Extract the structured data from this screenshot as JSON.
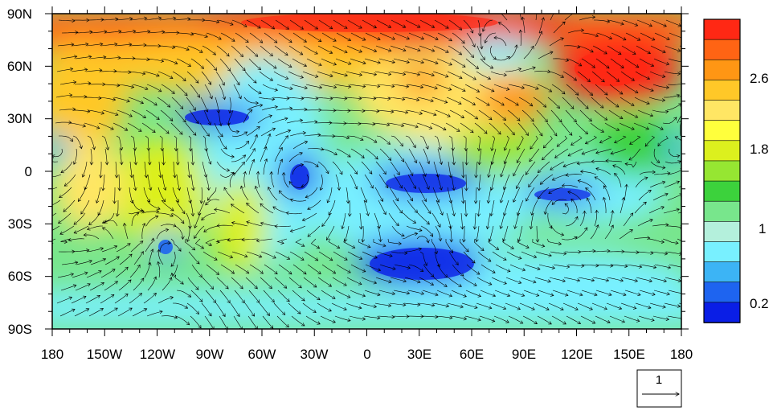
{
  "map": {
    "lat_labels": [
      "90N",
      "60N",
      "30N",
      "0",
      "30S",
      "60S",
      "90S"
    ],
    "lon_labels": [
      "180",
      "150W",
      "120W",
      "90W",
      "60W",
      "30W",
      "0",
      "30E",
      "60E",
      "90E",
      "120E",
      "150E",
      "180"
    ],
    "lat_range": [
      -90,
      90
    ],
    "lon_range": [
      -180,
      180
    ]
  },
  "colorbar": {
    "tick_labels": [
      "2.6",
      "1.8",
      "1",
      "0.2"
    ],
    "tick_values": [
      2.6,
      1.8,
      1.0,
      0.2
    ],
    "levels": [
      0.2,
      0.4,
      0.6,
      0.8,
      1.0,
      1.2,
      1.4,
      1.6,
      1.8,
      2.0,
      2.2,
      2.4,
      2.6,
      2.8
    ],
    "colors": [
      "#0a1ee6",
      "#1e64f0",
      "#3cb4f5",
      "#78f0ff",
      "#b4f0dc",
      "#78e68c",
      "#3cd23c",
      "#96e632",
      "#dcf01e",
      "#ffff3c",
      "#ffe664",
      "#ffc828",
      "#ff9614",
      "#ff6414",
      "#ff2814"
    ]
  },
  "reference_vector": {
    "label": "1"
  },
  "chart_data": {
    "type": "heatmap",
    "description_of_field": "",
    "xlim": [
      -180,
      180
    ],
    "ylim": [
      -90,
      90
    ],
    "features": [
      {
        "lon": -180,
        "lat": 80,
        "value": 2.8
      },
      {
        "lon": 0,
        "lat": 80,
        "value": 2.8
      },
      {
        "lon": 150,
        "lat": 60,
        "value": 2.9
      },
      {
        "lon": 75,
        "lat": 68,
        "value": 0.8
      },
      {
        "lon": 90,
        "lat": 40,
        "value": 2.5
      },
      {
        "lon": 30,
        "lat": 55,
        "value": 2.4
      },
      {
        "lon": -100,
        "lat": 30,
        "value": 0.3
      },
      {
        "lon": -70,
        "lat": 25,
        "value": 0.5
      },
      {
        "lon": -37,
        "lat": -5,
        "value": 0.2
      },
      {
        "lon": 40,
        "lat": -5,
        "value": 0.3
      },
      {
        "lon": 110,
        "lat": -15,
        "value": 0.3
      },
      {
        "lon": 30,
        "lat": -58,
        "value": 0.2
      },
      {
        "lon": -115,
        "lat": -45,
        "value": 0.3
      },
      {
        "lon": -175,
        "lat": 12,
        "value": 0.7
      },
      {
        "lon": 178,
        "lat": 10,
        "value": 0.8
      },
      {
        "lon": -90,
        "lat": -10,
        "value": 2.0
      },
      {
        "lon": -140,
        "lat": 10,
        "value": 2.0
      },
      {
        "lon": -65,
        "lat": -30,
        "value": 2.0
      },
      {
        "lon": 140,
        "lat": -40,
        "value": 1.4
      },
      {
        "lon": 0,
        "lat": -80,
        "value": 0.6
      }
    ]
  }
}
